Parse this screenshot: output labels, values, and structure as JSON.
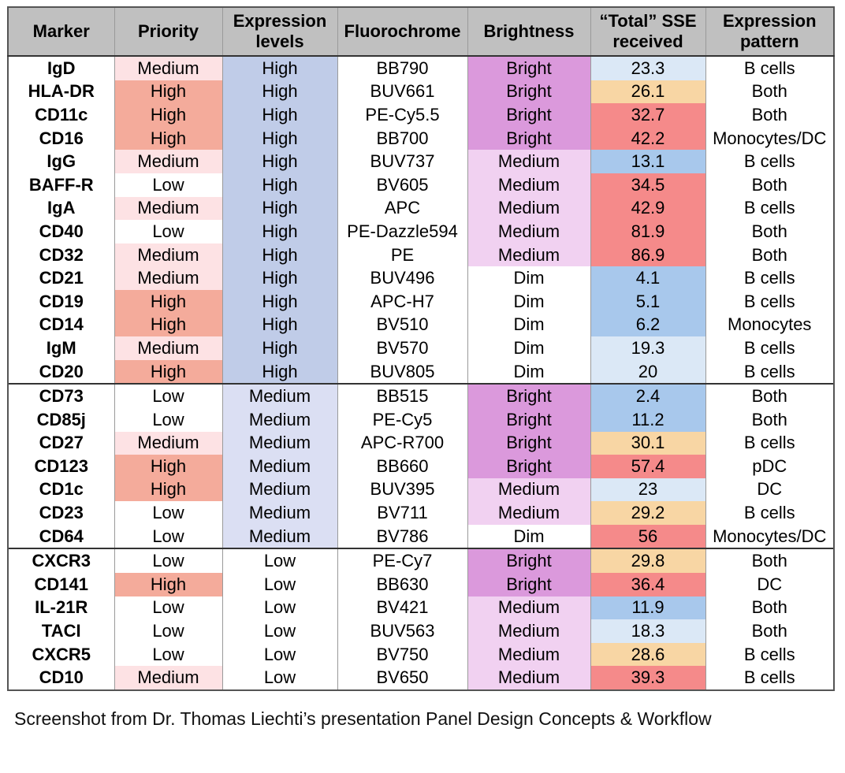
{
  "table": {
    "columns": [
      "Marker",
      "Priority",
      "Expression levels",
      "Fluorochrome",
      "Brightness",
      "“Total” SSE received",
      "Expression pattern"
    ],
    "header_lines": [
      [
        "Marker"
      ],
      [
        "Priority"
      ],
      [
        "Expression",
        "levels"
      ],
      [
        "Fluorochrome"
      ],
      [
        "Brightness"
      ],
      [
        "“Total” SSE",
        "received"
      ],
      [
        "Expression",
        "pattern"
      ]
    ],
    "rows": [
      {
        "marker": "IgD",
        "priority": "Medium",
        "expression": "High",
        "fluorochrome": "BB790",
        "brightness": "Bright",
        "sse": "23.3",
        "pattern": "B cells"
      },
      {
        "marker": "HLA-DR",
        "priority": "High",
        "expression": "High",
        "fluorochrome": "BUV661",
        "brightness": "Bright",
        "sse": "26.1",
        "pattern": "Both"
      },
      {
        "marker": "CD11c",
        "priority": "High",
        "expression": "High",
        "fluorochrome": "PE-Cy5.5",
        "brightness": "Bright",
        "sse": "32.7",
        "pattern": "Both"
      },
      {
        "marker": "CD16",
        "priority": "High",
        "expression": "High",
        "fluorochrome": "BB700",
        "brightness": "Bright",
        "sse": "42.2",
        "pattern": "Monocytes/DC"
      },
      {
        "marker": "IgG",
        "priority": "Medium",
        "expression": "High",
        "fluorochrome": "BUV737",
        "brightness": "Medium",
        "sse": "13.1",
        "pattern": "B cells"
      },
      {
        "marker": "BAFF-R",
        "priority": "Low",
        "expression": "High",
        "fluorochrome": "BV605",
        "brightness": "Medium",
        "sse": "34.5",
        "pattern": "Both"
      },
      {
        "marker": "IgA",
        "priority": "Medium",
        "expression": "High",
        "fluorochrome": "APC",
        "brightness": "Medium",
        "sse": "42.9",
        "pattern": "B cells"
      },
      {
        "marker": "CD40",
        "priority": "Low",
        "expression": "High",
        "fluorochrome": "PE-Dazzle594",
        "brightness": "Medium",
        "sse": "81.9",
        "pattern": "Both"
      },
      {
        "marker": "CD32",
        "priority": "Medium",
        "expression": "High",
        "fluorochrome": "PE",
        "brightness": "Medium",
        "sse": "86.9",
        "pattern": "Both"
      },
      {
        "marker": "CD21",
        "priority": "Medium",
        "expression": "High",
        "fluorochrome": "BUV496",
        "brightness": "Dim",
        "sse": "4.1",
        "pattern": "B cells"
      },
      {
        "marker": "CD19",
        "priority": "High",
        "expression": "High",
        "fluorochrome": "APC-H7",
        "brightness": "Dim",
        "sse": "5.1",
        "pattern": "B cells"
      },
      {
        "marker": "CD14",
        "priority": "High",
        "expression": "High",
        "fluorochrome": "BV510",
        "brightness": "Dim",
        "sse": "6.2",
        "pattern": "Monocytes"
      },
      {
        "marker": "IgM",
        "priority": "Medium",
        "expression": "High",
        "fluorochrome": "BV570",
        "brightness": "Dim",
        "sse": "19.3",
        "pattern": "B cells"
      },
      {
        "marker": "CD20",
        "priority": "High",
        "expression": "High",
        "fluorochrome": "BUV805",
        "brightness": "Dim",
        "sse": "20",
        "pattern": "B cells"
      },
      {
        "marker": "CD73",
        "priority": "Low",
        "expression": "Medium",
        "fluorochrome": "BB515",
        "brightness": "Bright",
        "sse": "2.4",
        "pattern": "Both"
      },
      {
        "marker": "CD85j",
        "priority": "Low",
        "expression": "Medium",
        "fluorochrome": "PE-Cy5",
        "brightness": "Bright",
        "sse": "11.2",
        "pattern": "Both"
      },
      {
        "marker": "CD27",
        "priority": "Medium",
        "expression": "Medium",
        "fluorochrome": "APC-R700",
        "brightness": "Bright",
        "sse": "30.1",
        "pattern": "B cells"
      },
      {
        "marker": "CD123",
        "priority": "High",
        "expression": "Medium",
        "fluorochrome": "BB660",
        "brightness": "Bright",
        "sse": "57.4",
        "pattern": "pDC"
      },
      {
        "marker": "CD1c",
        "priority": "High",
        "expression": "Medium",
        "fluorochrome": "BUV395",
        "brightness": "Medium",
        "sse": "23",
        "pattern": "DC"
      },
      {
        "marker": "CD23",
        "priority": "Low",
        "expression": "Medium",
        "fluorochrome": "BV711",
        "brightness": "Medium",
        "sse": "29.2",
        "pattern": "B cells"
      },
      {
        "marker": "CD64",
        "priority": "Low",
        "expression": "Medium",
        "fluorochrome": "BV786",
        "brightness": "Dim",
        "sse": "56",
        "pattern": "Monocytes/DC"
      },
      {
        "marker": "CXCR3",
        "priority": "Low",
        "expression": "Low",
        "fluorochrome": "PE-Cy7",
        "brightness": "Bright",
        "sse": "29.8",
        "pattern": "Both"
      },
      {
        "marker": "CD141",
        "priority": "High",
        "expression": "Low",
        "fluorochrome": "BB630",
        "brightness": "Bright",
        "sse": "36.4",
        "pattern": "DC"
      },
      {
        "marker": "IL-21R",
        "priority": "Low",
        "expression": "Low",
        "fluorochrome": "BV421",
        "brightness": "Medium",
        "sse": "11.9",
        "pattern": "Both"
      },
      {
        "marker": "TACI",
        "priority": "Low",
        "expression": "Low",
        "fluorochrome": "BUV563",
        "brightness": "Medium",
        "sse": "18.3",
        "pattern": "Both"
      },
      {
        "marker": "CXCR5",
        "priority": "Low",
        "expression": "Low",
        "fluorochrome": "BV750",
        "brightness": "Medium",
        "sse": "28.6",
        "pattern": "B cells"
      },
      {
        "marker": "CD10",
        "priority": "Medium",
        "expression": "Low",
        "fluorochrome": "BV650",
        "brightness": "Medium",
        "sse": "39.3",
        "pattern": "B cells"
      }
    ]
  },
  "colors": {
    "header_bg": "#c0c0c0",
    "priority": {
      "High": "#f4ab9b",
      "Medium": "#fde2e4",
      "Low": "#ffffff"
    },
    "expression": {
      "High": "#c0cce8",
      "Medium": "#dbdff3",
      "Low": "#ffffff"
    },
    "brightness": {
      "Bright": "#db99dc",
      "Medium": "#f1d1f1",
      "Dim": "#ffffff"
    },
    "sse": {
      "very_low": "#a8c8ec",
      "low": "#dbe8f6",
      "mid": "#f8d6a4",
      "high": "#f58a8a"
    }
  },
  "caption": "Screenshot from Dr. Thomas Liechti’s presentation Panel Design Concepts & Workflow"
}
